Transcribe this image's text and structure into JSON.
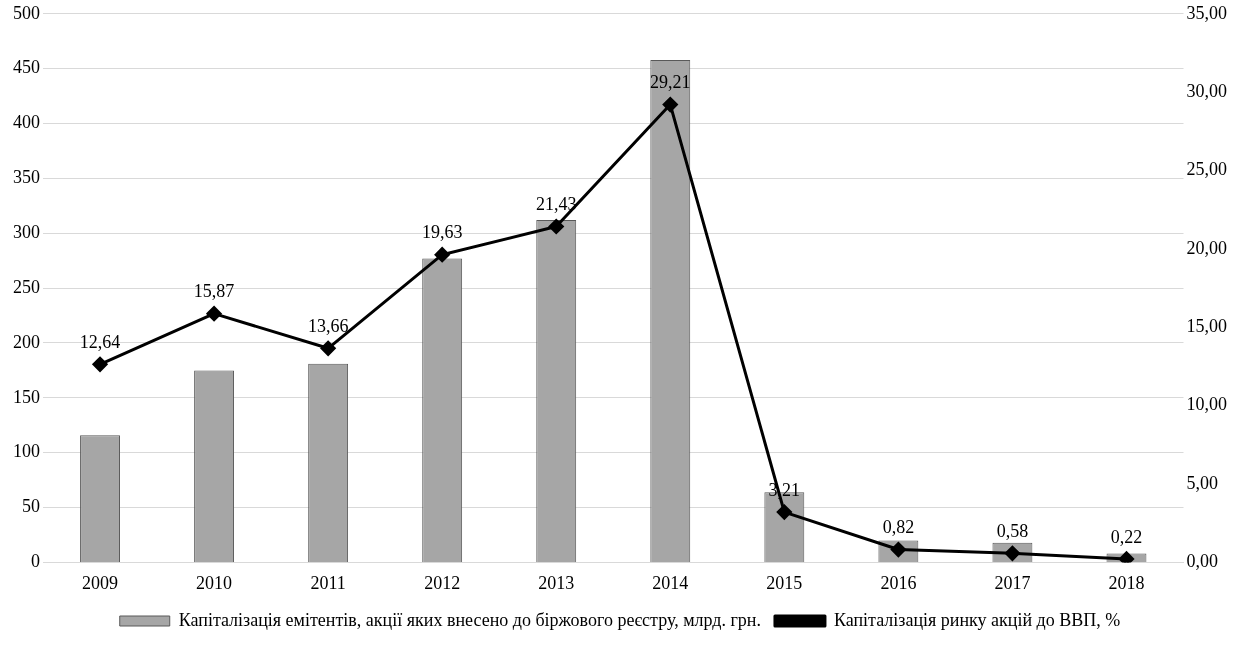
{
  "chart_data": {
    "type": "bar",
    "categories": [
      "2009",
      "2010",
      "2011",
      "2012",
      "2013",
      "2014",
      "2015",
      "2016",
      "2017",
      "2018"
    ],
    "series": [
      {
        "name": "Капіталізація емітентів, акції яких внесено до біржового реєстру, млрд. грн.",
        "color": "#a6a6a6",
        "values": [
          116,
          175,
          181,
          277,
          312,
          458,
          64,
          20,
          18,
          8
        ]
      },
      {
        "name": "Капіталізація ринку акцій до ВВП, %",
        "type": "line",
        "axis": "y2",
        "color": "#000000",
        "marker": "diamond",
        "line_style": "solid",
        "values": [
          12.64,
          15.87,
          13.66,
          19.63,
          21.43,
          29.21,
          3.21,
          0.82,
          0.58,
          0.22
        ],
        "value_labels": [
          "12,64",
          "15,87",
          "13,66",
          "19,63",
          "21,43",
          "29,21",
          "3,21",
          "0,82",
          "0,58",
          "0,22"
        ]
      }
    ],
    "ylim": [
      0,
      500
    ],
    "yticks": [
      0,
      50,
      100,
      150,
      200,
      250,
      300,
      350,
      400,
      450,
      500
    ],
    "y2lim": [
      0,
      35
    ],
    "y2ticks": [
      {
        "value": 0,
        "label": "0,00"
      },
      {
        "value": 5,
        "label": "5,00"
      },
      {
        "value": 10,
        "label": "10,00"
      },
      {
        "value": 15,
        "label": "15,00"
      },
      {
        "value": 20,
        "label": "20,00"
      },
      {
        "value": 25,
        "label": "25,00"
      },
      {
        "value": 30,
        "label": "30,00"
      },
      {
        "value": 35,
        "label": "35,00"
      }
    ],
    "grid": "y",
    "legend": "bottom"
  }
}
